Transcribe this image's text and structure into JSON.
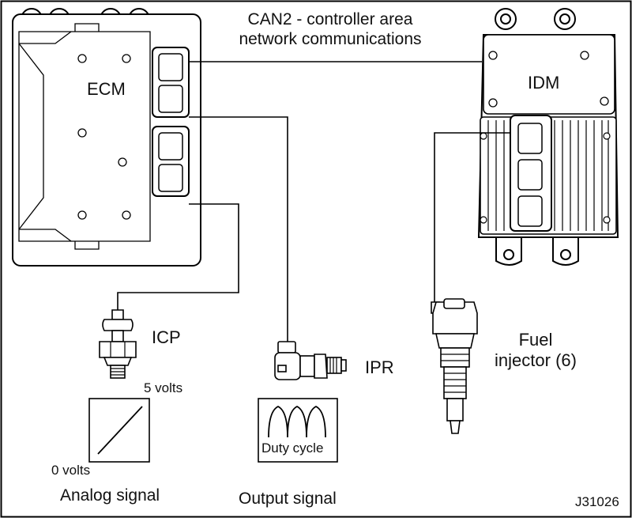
{
  "labels": {
    "can2": "CAN2 - controller area network communications",
    "can2_line1": "CAN2 - controller area",
    "can2_line2": "network communications",
    "ecm": "ECM",
    "idm": "IDM",
    "icp": "ICP",
    "ipr": "IPR",
    "fuel_injector_line1": "Fuel",
    "fuel_injector_line2": "injector (6)",
    "five_volts": "5 volts",
    "zero_volts": "0 volts",
    "analog_signal": "Analog signal",
    "duty_cycle": "Duty cycle",
    "output_signal": "Output signal",
    "figure_id": "J31026"
  },
  "colors": {
    "line": "#000000",
    "component_fill": "#ffffff",
    "background": "#ffffff"
  }
}
